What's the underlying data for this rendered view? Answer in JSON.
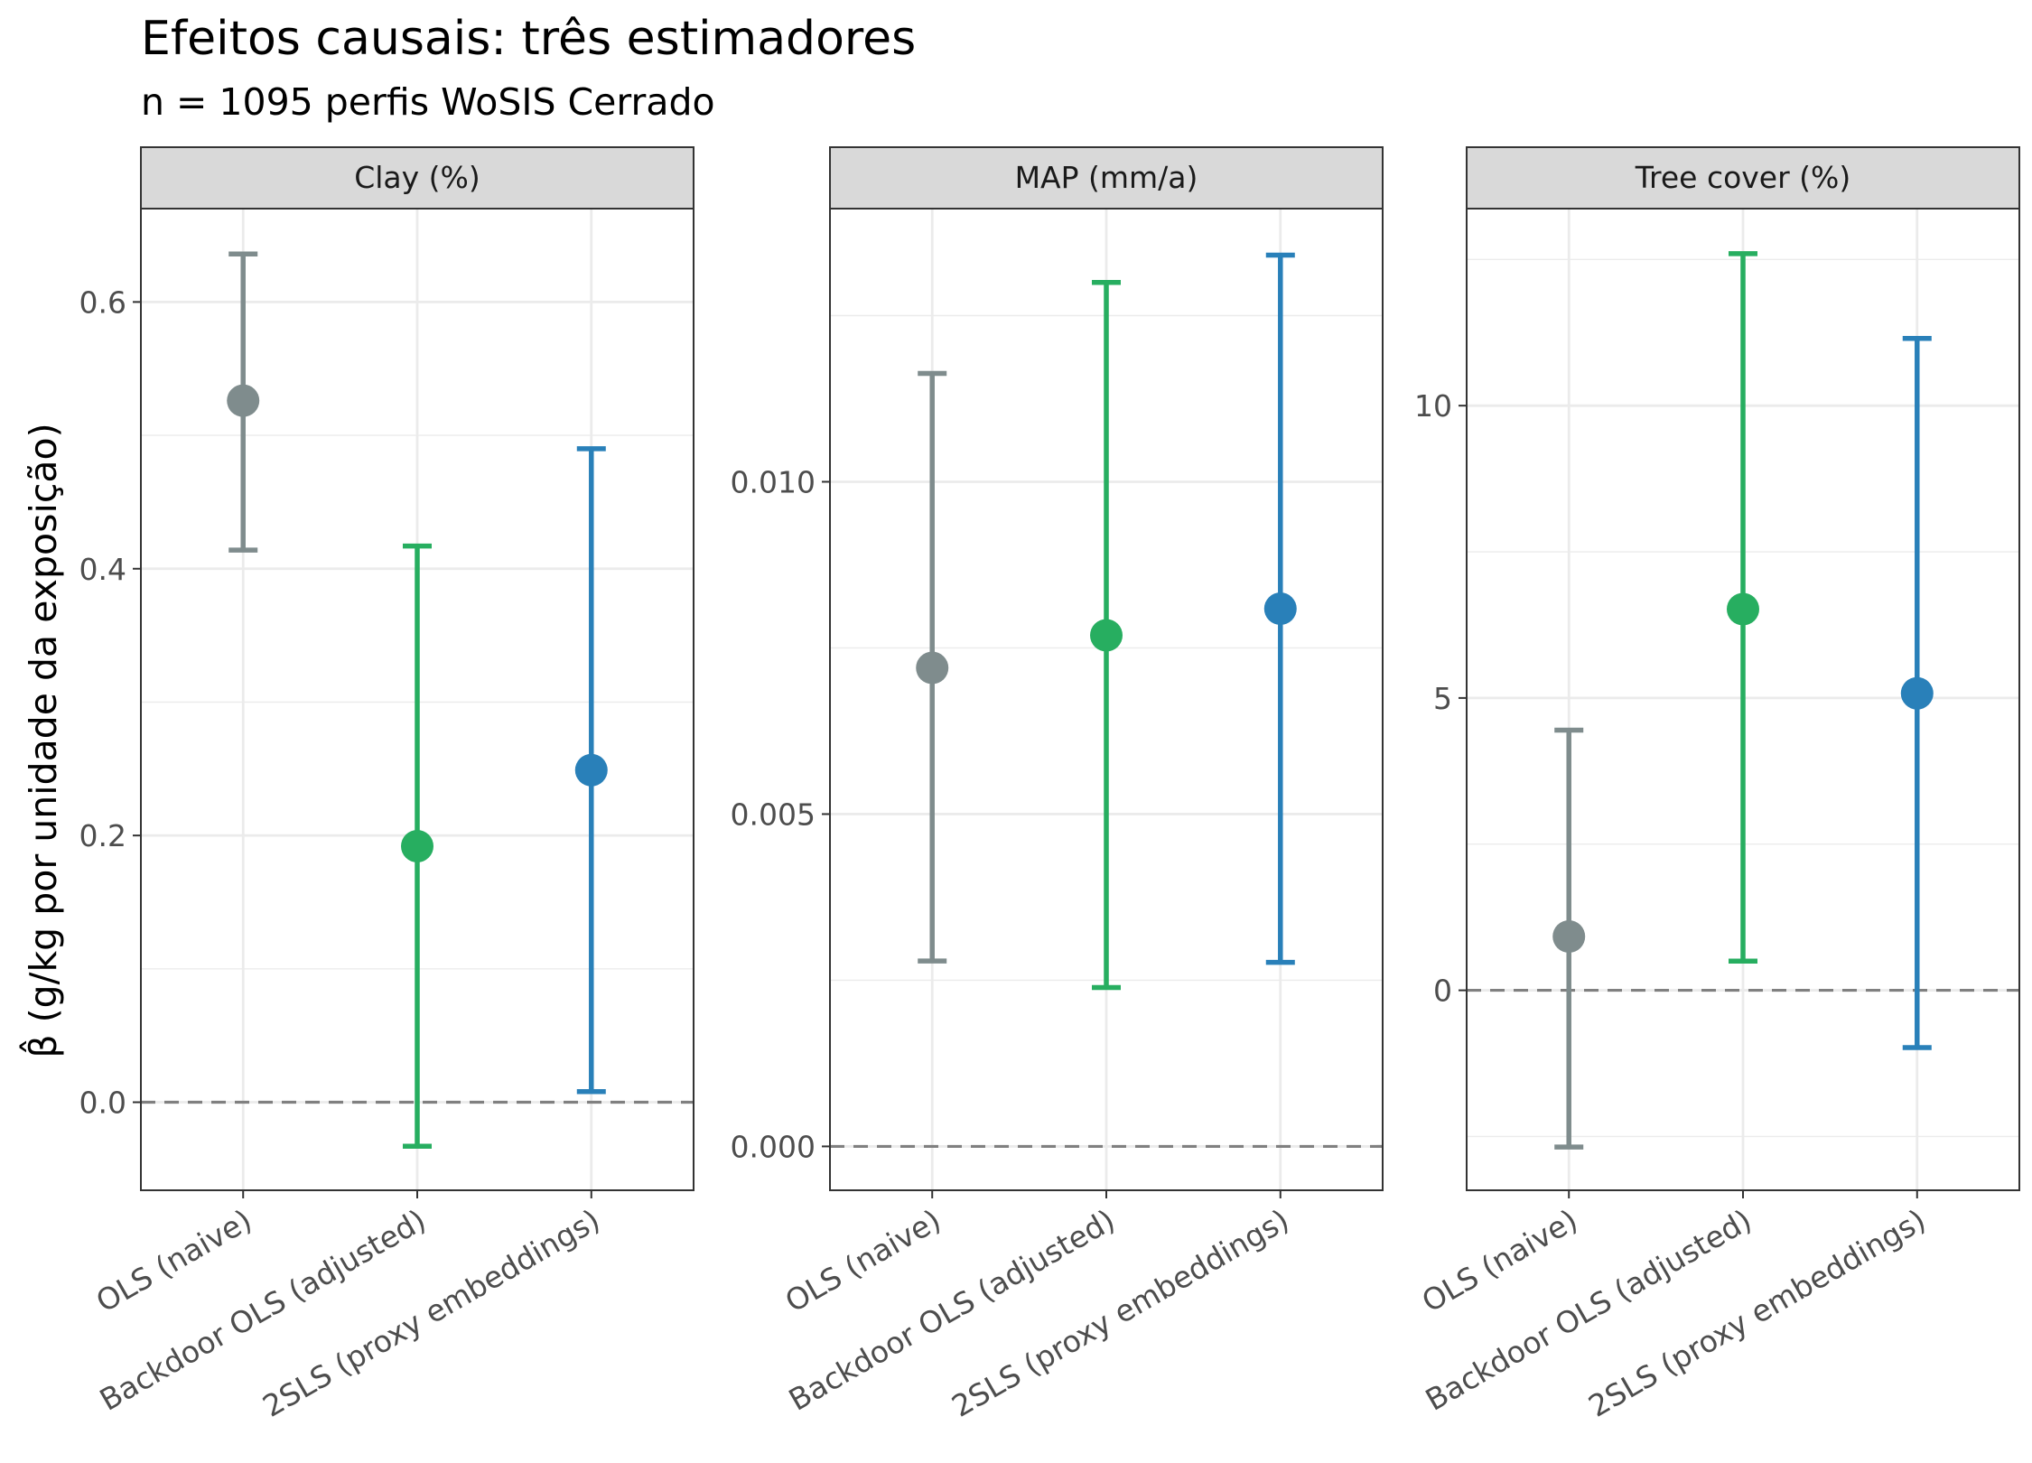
{
  "title": "Efeitos causais: três estimadores",
  "subtitle": "n = 1095 perfis WoSIS Cerrado",
  "ylabel": "β̂ (g/kg por unidade da exposição)",
  "colors": {
    "OLS (naive)": "#7f8c8d",
    "Backdoor OLS (adjusted)": "#27ae60",
    "2SLS (proxy embeddings)": "#2980b9"
  },
  "chart_data": [
    {
      "type": "errorbar",
      "panel": "Clay (%)",
      "categories": [
        "OLS (naive)",
        "Backdoor OLS (adjusted)",
        "2SLS (proxy embeddings)"
      ],
      "estimate": [
        0.526,
        0.192,
        0.249
      ],
      "lower": [
        0.414,
        -0.033,
        0.008
      ],
      "upper": [
        0.636,
        0.417,
        0.49
      ],
      "ylim": [
        -0.066,
        0.67
      ],
      "major_ticks": [
        0.0,
        0.2,
        0.4,
        0.6
      ],
      "tick_labels": [
        "0.0",
        "0.2",
        "0.4",
        "0.6"
      ],
      "minor_ticks": [
        0.1,
        0.3,
        0.5
      ],
      "reference_line": 0
    },
    {
      "type": "errorbar",
      "panel": "MAP (mm/a)",
      "categories": [
        "OLS (naive)",
        "Backdoor OLS (adjusted)",
        "2SLS (proxy embeddings)"
      ],
      "estimate": [
        0.0072,
        0.00769,
        0.00809
      ],
      "lower": [
        0.00279,
        0.00239,
        0.00277
      ],
      "upper": [
        0.01163,
        0.013,
        0.01341
      ],
      "ylim": [
        -0.00066,
        0.01411
      ],
      "major_ticks": [
        0.0,
        0.005,
        0.01
      ],
      "tick_labels": [
        "0.000",
        "0.005",
        "0.010"
      ],
      "minor_ticks": [
        0.0025,
        0.0075,
        0.0125
      ],
      "reference_line": 0
    },
    {
      "type": "errorbar",
      "panel": "Tree cover (%)",
      "categories": [
        "OLS (naive)",
        "Backdoor OLS (adjusted)",
        "2SLS (proxy embeddings)"
      ],
      "estimate": [
        0.92,
        6.52,
        5.08
      ],
      "lower": [
        -2.68,
        0.5,
        -0.98
      ],
      "upper": [
        4.45,
        12.6,
        11.15
      ],
      "ylim": [
        -3.42,
        13.37
      ],
      "major_ticks": [
        0,
        5,
        10
      ],
      "tick_labels": [
        "0",
        "5",
        "10"
      ],
      "minor_ticks": [
        -2.5,
        2.5,
        7.5,
        12.5
      ],
      "reference_line": 0
    }
  ]
}
